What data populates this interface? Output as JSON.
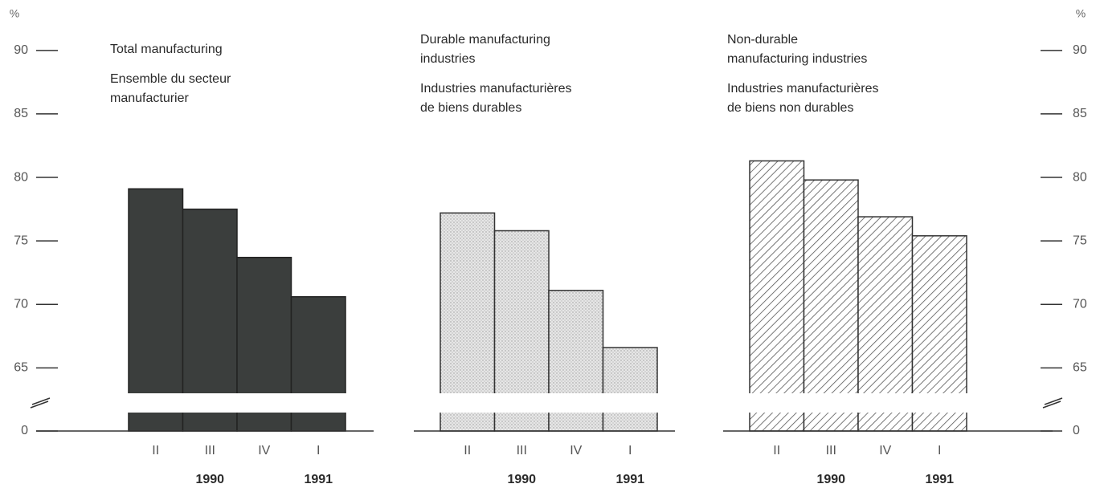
{
  "chart_data": [
    {
      "type": "bar",
      "title": [
        "Total manufacturing"
      ],
      "subtitle": [
        "Ensemble du secteur",
        "manufacturier"
      ],
      "categories": [
        "II",
        "III",
        "IV",
        "I"
      ],
      "values": [
        79.1,
        77.5,
        73.7,
        70.6
      ],
      "year_labels": [
        {
          "label": "1990",
          "categories": [
            0,
            1,
            2
          ]
        },
        {
          "label": "1991",
          "categories": [
            3
          ]
        }
      ],
      "color": "#3b3e3d",
      "pattern": "solid",
      "ylim": [
        0,
        91
      ],
      "axis_break": [
        2,
        63
      ],
      "yticks": [
        0,
        65,
        70,
        75,
        80,
        85,
        90
      ],
      "y_label": "%",
      "axis_side": "left"
    },
    {
      "type": "bar",
      "title": [
        "Durable manufacturing",
        "industries"
      ],
      "subtitle": [
        "Industries manufacturières",
        "de biens durables"
      ],
      "categories": [
        "II",
        "III",
        "IV",
        "I"
      ],
      "values": [
        77.2,
        75.8,
        71.1,
        66.6
      ],
      "year_labels": [
        {
          "label": "1990",
          "categories": [
            0,
            1,
            2
          ]
        },
        {
          "label": "1991",
          "categories": [
            3
          ]
        }
      ],
      "color": "#d9d9d9",
      "pattern": "stipple",
      "ylim": [
        0,
        91
      ],
      "axis_break": [
        2,
        63
      ]
    },
    {
      "type": "bar",
      "title": [
        "Non-durable",
        "manufacturing industries"
      ],
      "subtitle": [
        "Industries manufacturières",
        "de biens non durables"
      ],
      "categories": [
        "II",
        "III",
        "IV",
        "I"
      ],
      "values": [
        81.3,
        79.8,
        76.9,
        75.4
      ],
      "year_labels": [
        {
          "label": "1990",
          "categories": [
            0,
            1,
            2
          ]
        },
        {
          "label": "1991",
          "categories": [
            3
          ]
        }
      ],
      "color": "#555555",
      "pattern": "hatch",
      "ylim": [
        0,
        91
      ],
      "axis_break": [
        2,
        63
      ],
      "yticks": [
        0,
        65,
        70,
        75,
        80,
        85,
        90
      ],
      "y_label": "%",
      "axis_side": "right"
    }
  ]
}
